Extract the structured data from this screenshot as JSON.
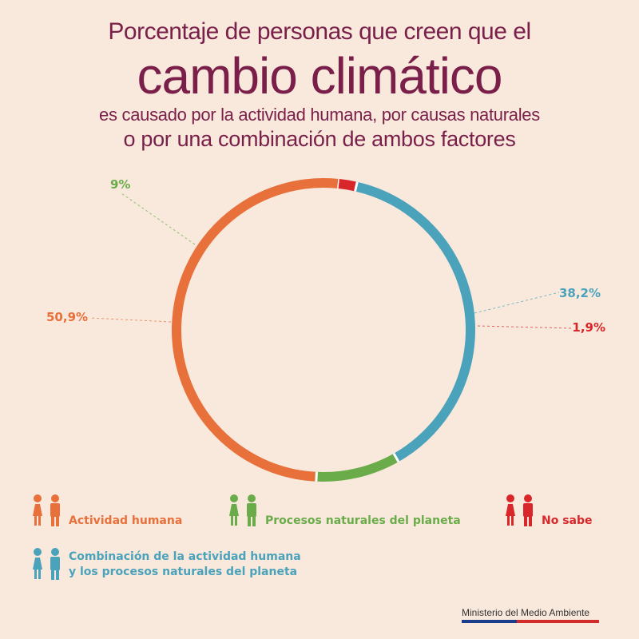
{
  "header": {
    "line1": "Porcentaje de personas que creen que el",
    "line2": "cambio climático",
    "line3": "es causado por la actividad humana, por causas naturales",
    "line4": "o por una combinación de ambos factores"
  },
  "chart_data": {
    "type": "pie",
    "variant": "donut",
    "slices": [
      {
        "name": "Actividad humana",
        "value": 50.9,
        "label": "50,9%",
        "color": "#e8703a"
      },
      {
        "name": "Procesos naturales del planeta",
        "value": 9,
        "label": "9%",
        "color": "#6aab4a"
      },
      {
        "name": "Combinación de la actividad humana y los procesos naturales del planeta",
        "value": 38.2,
        "label": "38,2%",
        "color": "#4aa2bb"
      },
      {
        "name": "No sabe",
        "value": 1.9,
        "label": "1,9%",
        "color": "#d8262a"
      }
    ]
  },
  "legend": {
    "human": {
      "line1": "Actividad humana",
      "color": "#e8703a"
    },
    "natural": {
      "line1": "Procesos naturales del planeta",
      "color": "#6aab4a"
    },
    "unknown": {
      "line1": "No sabe",
      "color": "#d8262a"
    },
    "combined": {
      "line1": "Combinación de la actividad humana",
      "line2": "y los procesos naturales del planeta",
      "color": "#4aa2bb"
    }
  },
  "footer": {
    "ministry": "Ministerio del Medio Ambiente"
  }
}
